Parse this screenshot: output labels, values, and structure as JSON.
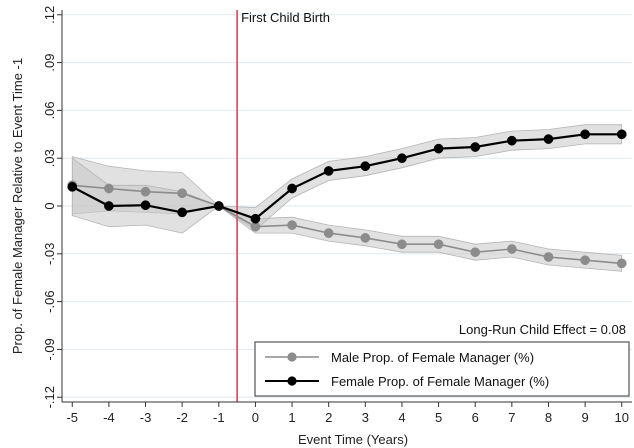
{
  "chart_data": {
    "type": "line",
    "xlabel": "Event Time (Years)",
    "ylabel": "Prop. of Female Manager Relative to Event Time -1",
    "xlim": [
      -5,
      10
    ],
    "ylim": [
      -0.12,
      0.12
    ],
    "x": [
      -5,
      -4,
      -3,
      -2,
      -1,
      0,
      1,
      2,
      3,
      4,
      5,
      6,
      7,
      8,
      9,
      10
    ],
    "xticks": [
      "-5",
      "-4",
      "-3",
      "-2",
      "-1",
      "0",
      "1",
      "2",
      "3",
      "4",
      "5",
      "6",
      "7",
      "8",
      "9",
      "10"
    ],
    "yticks": [
      {
        "value": -0.12,
        "label": "-.12"
      },
      {
        "value": -0.09,
        "label": "-.09"
      },
      {
        "value": -0.06,
        "label": "-.06"
      },
      {
        "value": -0.03,
        "label": "-.03"
      },
      {
        "value": 0,
        "label": "0"
      },
      {
        "value": 0.03,
        "label": ".03"
      },
      {
        "value": 0.06,
        "label": ".06"
      },
      {
        "value": 0.09,
        "label": ".09"
      },
      {
        "value": 0.12,
        "label": ".12"
      }
    ],
    "grid": true,
    "vline": {
      "x": -0.5,
      "label": "First Child Birth",
      "color": "#d6455b"
    },
    "annotation": "Long-Run Child Effect = 0.08",
    "legend_position": "bottom-right",
    "series": [
      {
        "name": "Male Prop. of Female Manager (%)",
        "color": "#8c8c8c",
        "values": [
          0.013,
          0.011,
          0.009,
          0.008,
          0.0,
          -0.013,
          -0.012,
          -0.017,
          -0.02,
          -0.024,
          -0.024,
          -0.029,
          -0.027,
          -0.032,
          -0.034,
          -0.036
        ],
        "ci_lower": [
          -0.005,
          -0.003,
          -0.004,
          -0.005,
          0.0,
          -0.017,
          -0.017,
          -0.022,
          -0.025,
          -0.029,
          -0.029,
          -0.034,
          -0.032,
          -0.037,
          -0.039,
          -0.041
        ],
        "ci_upper": [
          0.031,
          0.025,
          0.022,
          0.021,
          0.0,
          -0.008,
          -0.007,
          -0.012,
          -0.015,
          -0.019,
          -0.019,
          -0.024,
          -0.022,
          -0.027,
          -0.029,
          -0.031
        ]
      },
      {
        "name": "Female Prop. of Female Manager (%)",
        "color": "#000000",
        "values": [
          0.012,
          0.0,
          0.0005,
          -0.004,
          0.0,
          -0.008,
          0.011,
          0.022,
          0.025,
          0.03,
          0.036,
          0.037,
          0.041,
          0.042,
          0.045,
          0.045
        ],
        "ci_lower": [
          -0.006,
          -0.013,
          -0.012,
          -0.017,
          0.0,
          -0.015,
          0.005,
          0.016,
          0.019,
          0.024,
          0.03,
          0.031,
          0.035,
          0.036,
          0.039,
          0.039
        ],
        "ci_upper": [
          0.03,
          0.013,
          0.013,
          0.009,
          0.0,
          -0.001,
          0.017,
          0.028,
          0.031,
          0.036,
          0.042,
          0.043,
          0.047,
          0.048,
          0.051,
          0.051
        ]
      }
    ]
  }
}
